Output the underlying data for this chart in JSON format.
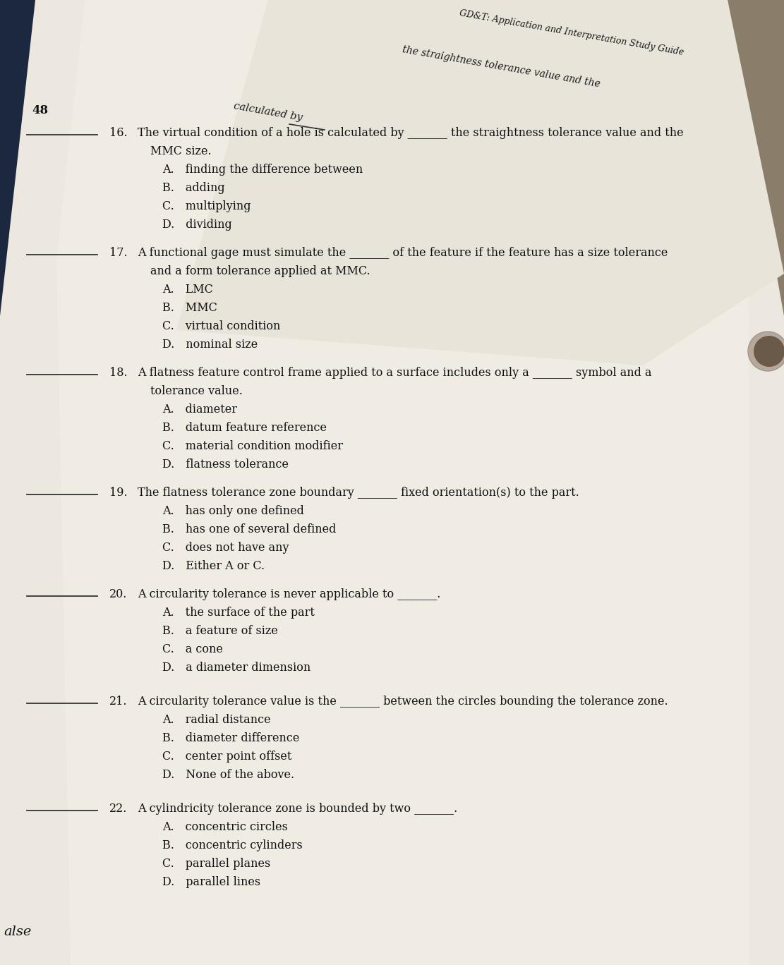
{
  "bg_dark_navy": "#1c2840",
  "bg_tan": "#8a7d6a",
  "bg_page": "#e8e4db",
  "bg_page_light": "#eeebe3",
  "text_color": "#1a1a1a",
  "header_title": "GD&T: Application and Interpretation Study Guide",
  "header_cont": "the straightness tolerance value and the",
  "page_number": "48",
  "footer_text": "alse",
  "q16_main": "16.  The virtual condition of a hole is calculated by",
  "q16_line2": "MMC size.",
  "q16_choices": [
    "A. finding the difference between",
    "B. adding",
    "C. multiplying",
    "D. dividing"
  ],
  "q17_main": "17.  A functional gage must simulate the",
  "q17_line2": "and a form tolerance applied at MMC.",
  "q17_choices": [
    "A. LMC",
    "B. MMC",
    "C. virtual condition",
    "D. nominal size"
  ],
  "q18_main": "18.  A flatness feature control frame applied to a surface includes only a",
  "q18_line2": "tolerance value.",
  "q18_choices": [
    "A. diameter",
    "B. datum feature reference",
    "C. material condition modifier",
    "D. flatness tolerance"
  ],
  "q19_main": "19.  The flatness tolerance zone boundary",
  "q19_line2": "",
  "q19_choices": [
    "A. has only one defined",
    "B. has one of several defined",
    "C. does not have any",
    "D. Either A or C."
  ],
  "q20_main": "20.  A circularity tolerance is never applicable to",
  "q20_choices": [
    "A. the surface of the part",
    "B. a feature of size",
    "C. a cone",
    "D. a diameter dimension"
  ],
  "q21_main": "21.  A circularity tolerance value is the",
  "q21_choices": [
    "A. radial distance",
    "B. diameter difference",
    "C. center point offset",
    "D. None of the above."
  ],
  "q22_main": "22.  A cylindricity tolerance zone is bounded by two",
  "q22_choices": [
    "A. concentric circles",
    "B. concentric cylinders",
    "C. parallel planes",
    "D. parallel lines"
  ]
}
